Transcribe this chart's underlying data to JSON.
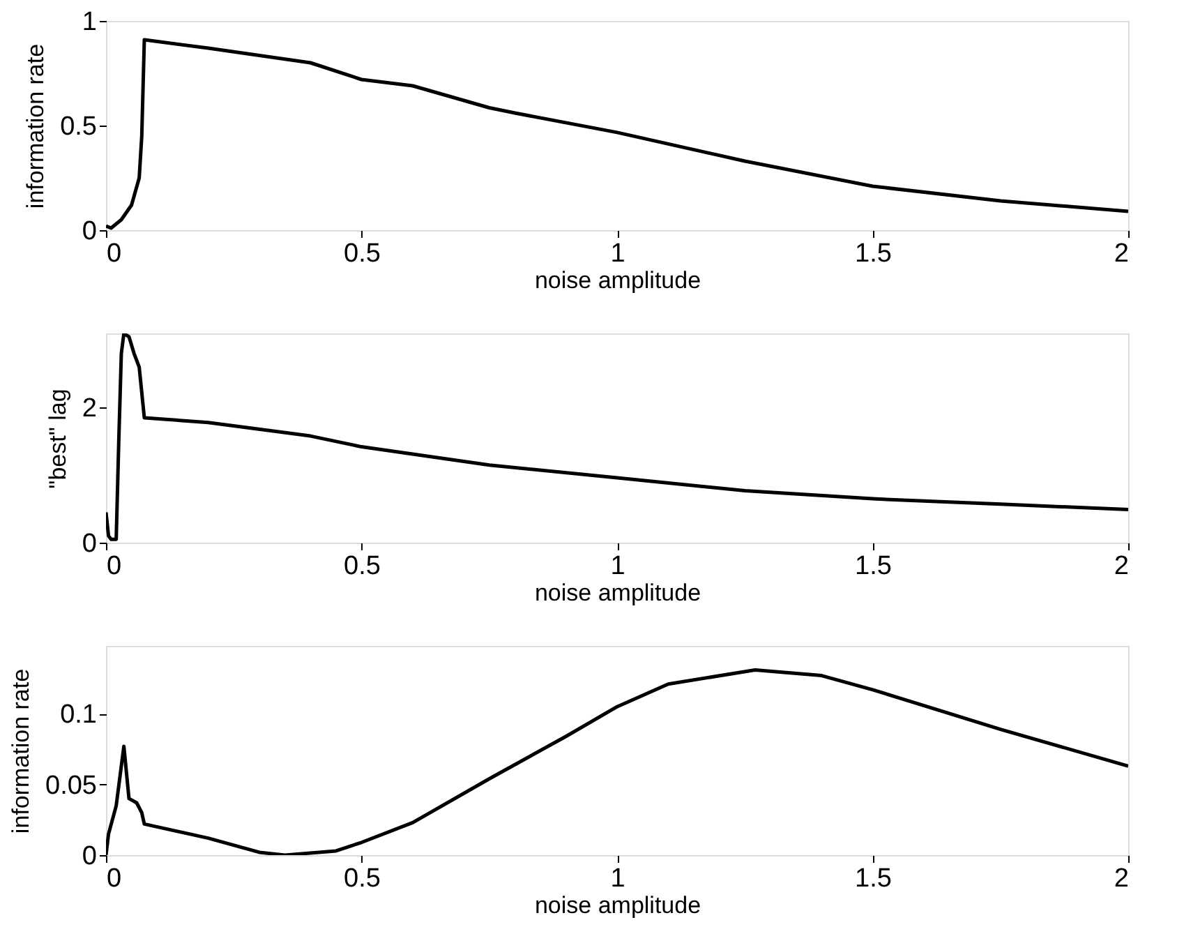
{
  "chart_data": [
    {
      "type": "line",
      "xlabel": "noise amplitude",
      "ylabel": "information rate",
      "color": "#000000",
      "xlim": [
        0,
        2
      ],
      "xticks": [
        0,
        0.5,
        1,
        1.5,
        2
      ],
      "ylim": [
        0,
        1
      ],
      "yticks": [
        0,
        0.5,
        1
      ],
      "x": [
        0,
        0.01,
        0.03,
        0.05,
        0.065,
        0.07,
        0.075,
        0.2,
        0.4,
        0.5,
        0.6,
        0.75,
        0.8,
        1.0,
        1.25,
        1.5,
        1.75,
        2.0
      ],
      "values": [
        0.02,
        0.01,
        0.05,
        0.12,
        0.25,
        0.45,
        0.91,
        0.87,
        0.8,
        0.72,
        0.69,
        0.585,
        0.56,
        0.467,
        0.33,
        0.21,
        0.14,
        0.09
      ]
    },
    {
      "type": "line",
      "xlabel": "noise amplitude",
      "ylabel": "\"best\" lag",
      "color": "#000000",
      "xlim": [
        0,
        2
      ],
      "xticks": [
        0,
        0.5,
        1,
        1.5,
        2
      ],
      "ylim": [
        0,
        3.1
      ],
      "yticks": [
        0,
        2
      ],
      "x": [
        0,
        0.005,
        0.01,
        0.02,
        0.025,
        0.03,
        0.035,
        0.045,
        0.055,
        0.065,
        0.075,
        0.2,
        0.4,
        0.5,
        0.75,
        1.0,
        1.25,
        1.5,
        1.75,
        2.0
      ],
      "values": [
        0.45,
        0.1,
        0.05,
        0.05,
        1.5,
        2.8,
        3.1,
        3.05,
        2.8,
        2.6,
        1.85,
        1.78,
        1.58,
        1.42,
        1.15,
        0.96,
        0.77,
        0.65,
        0.57,
        0.49
      ]
    },
    {
      "type": "line",
      "xlabel": "noise amplitude",
      "ylabel": "information rate",
      "color": "#000000",
      "xlim": [
        0,
        2
      ],
      "xticks": [
        0,
        0.5,
        1,
        1.5,
        2
      ],
      "ylim": [
        0,
        0.148
      ],
      "yticks": [
        0,
        0.05,
        0.1
      ],
      "x": [
        0,
        0.005,
        0.02,
        0.035,
        0.045,
        0.06,
        0.07,
        0.075,
        0.2,
        0.3,
        0.35,
        0.45,
        0.5,
        0.6,
        0.75,
        0.9,
        1.0,
        1.1,
        1.27,
        1.4,
        1.5,
        1.75,
        2.0
      ],
      "values": [
        0,
        0.015,
        0.035,
        0.077,
        0.04,
        0.037,
        0.03,
        0.022,
        0.012,
        0.002,
        0,
        0.003,
        0.009,
        0.023,
        0.054,
        0.084,
        0.105,
        0.121,
        0.131,
        0.127,
        0.117,
        0.089,
        0.063
      ]
    }
  ]
}
